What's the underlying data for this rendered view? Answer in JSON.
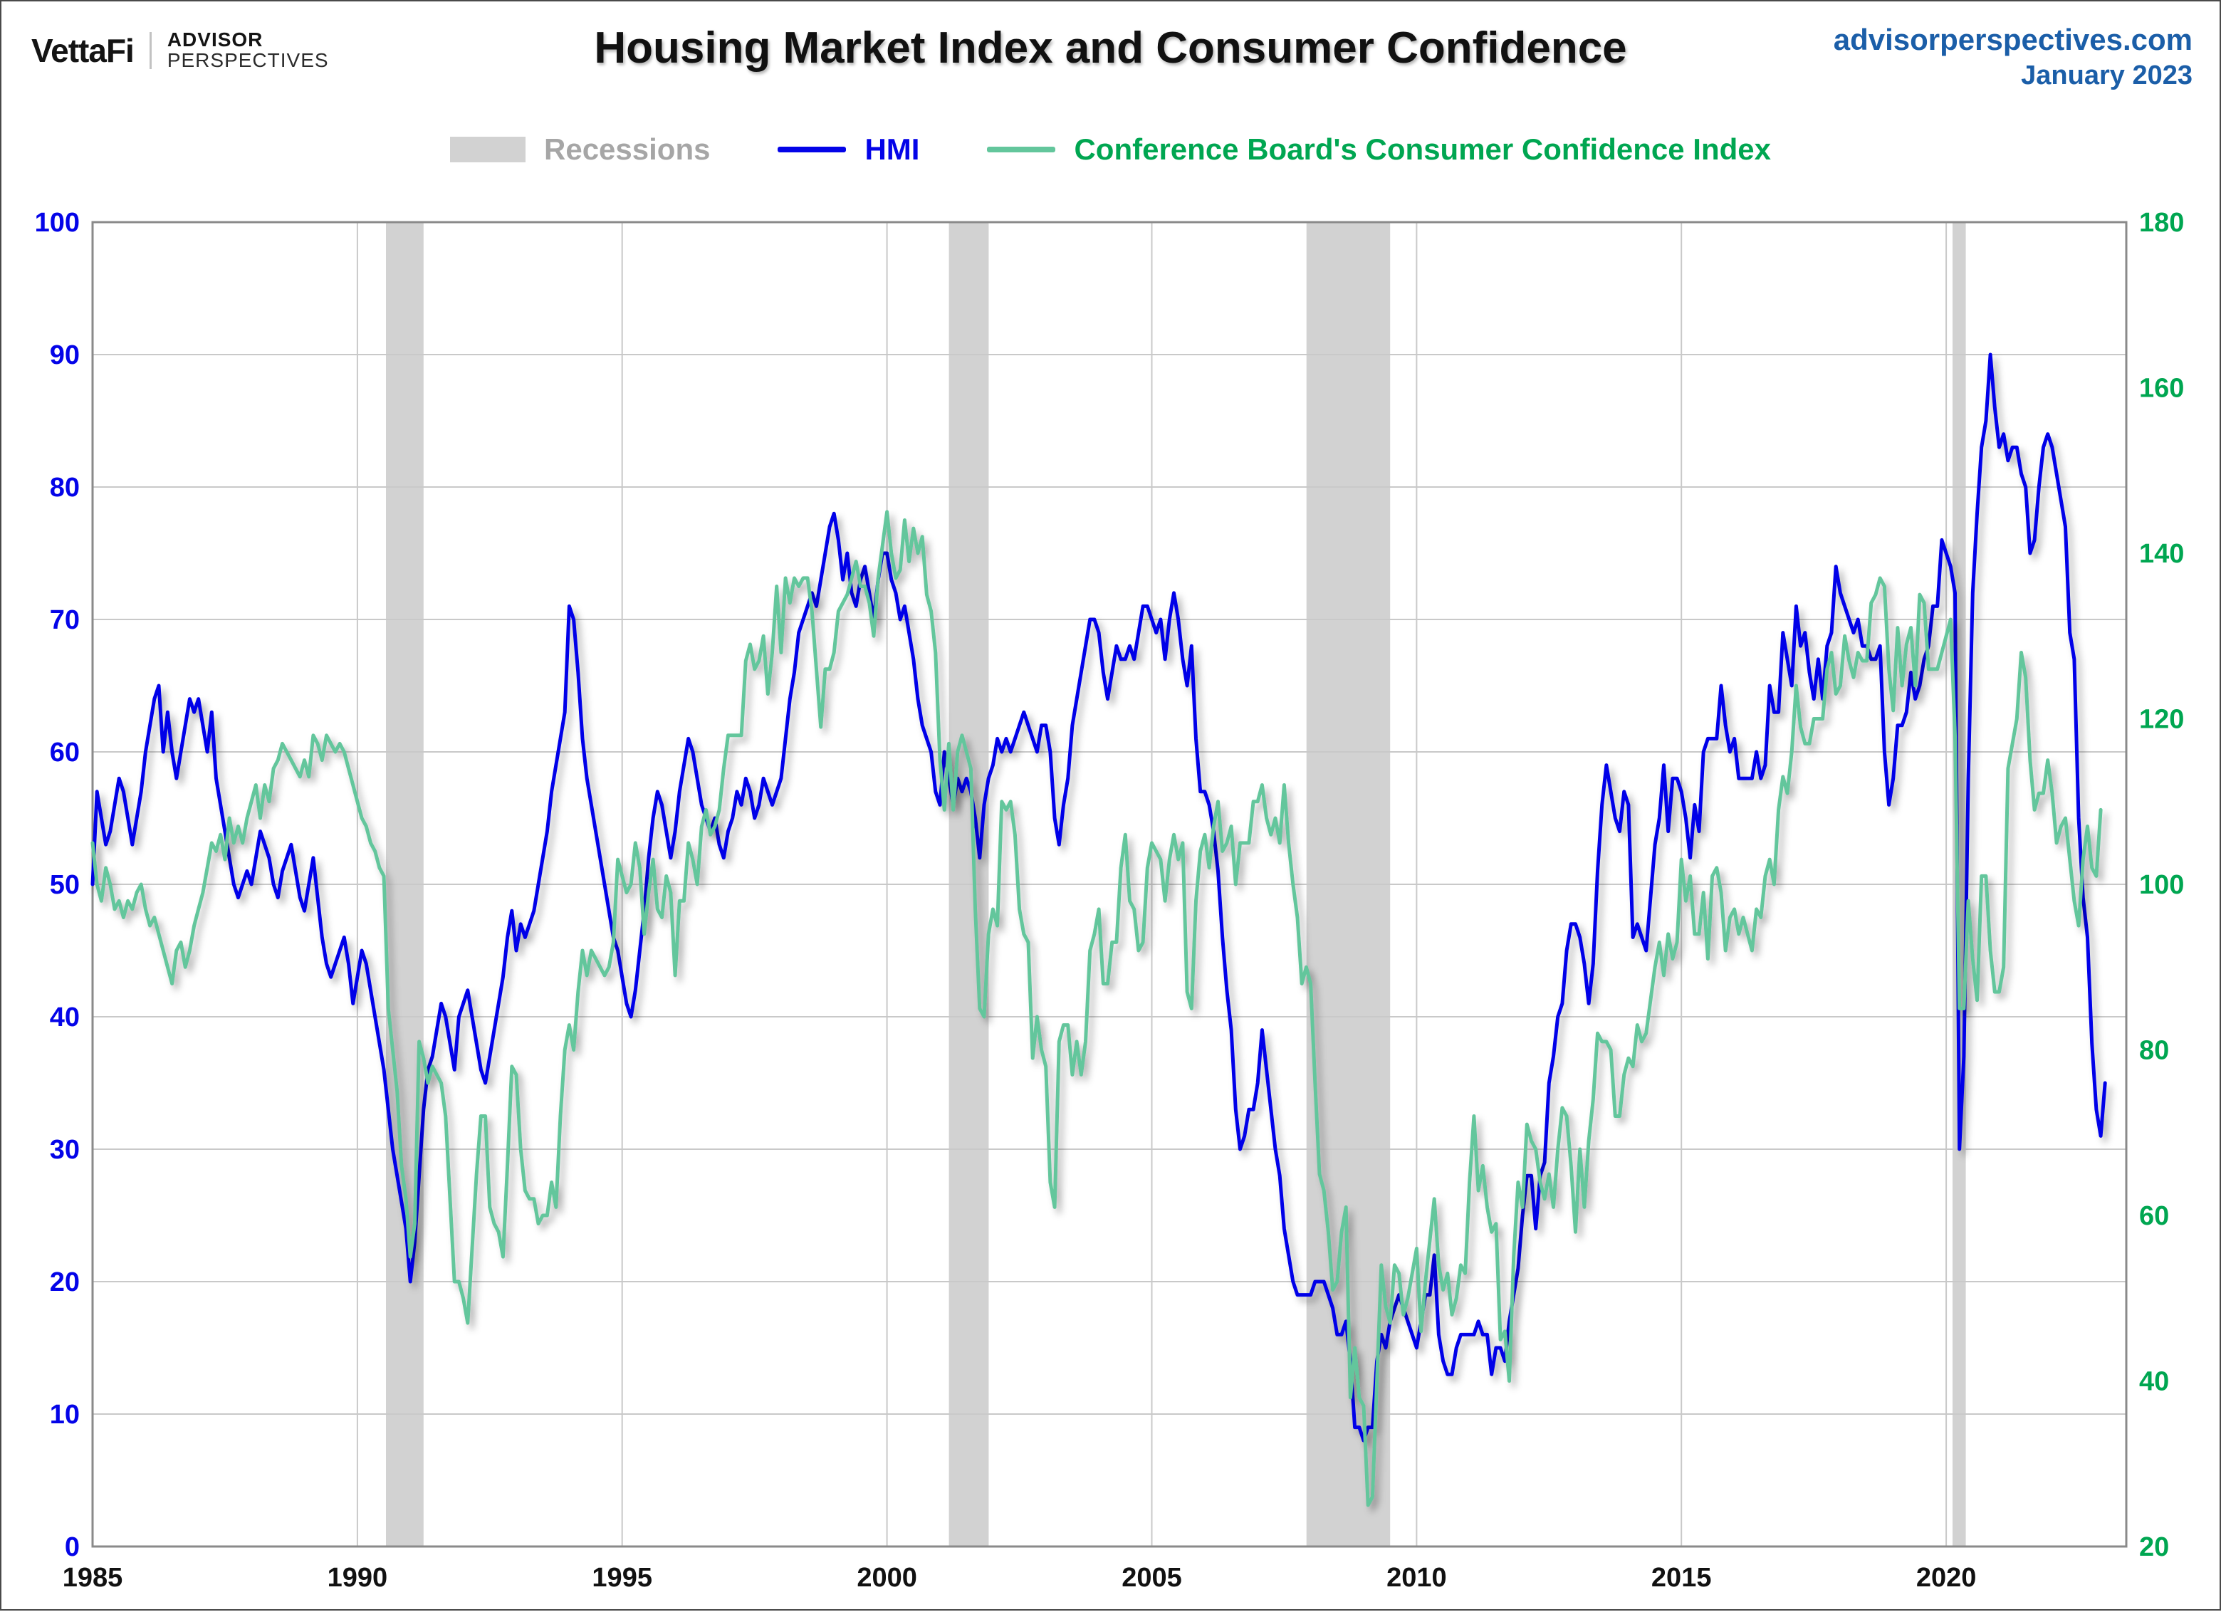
{
  "header": {
    "brand": {
      "vettafi": "VettaFi",
      "advisor": "ADVISOR",
      "perspectives": "PERSPECTIVES"
    },
    "title": "Housing Market Index and Consumer Confidence",
    "site": "advisorperspectives.com",
    "date": "January 2023",
    "site_color": "#1b5ea8"
  },
  "legend": [
    {
      "label": "Recessions",
      "swatch": "band",
      "swatch_color": "#d2d2d2",
      "text_color": "#a6a6a6"
    },
    {
      "label": "HMI",
      "swatch": "line",
      "swatch_color": "#0404e8",
      "text_color": "#0404e8"
    },
    {
      "label": "Conference Board's Consumer Confidence Index",
      "swatch": "line",
      "swatch_color": "#63c69c",
      "text_color": "#00a651"
    }
  ],
  "chart_data": {
    "type": "line",
    "title": "Housing Market Index and Consumer Confidence",
    "x_min": 1985,
    "x_max": 2023.4,
    "x_ticks": [
      1985,
      1990,
      1995,
      2000,
      2005,
      2010,
      2015,
      2020
    ],
    "left_axis": {
      "min": 0,
      "max": 100,
      "ticks": [
        0,
        10,
        20,
        30,
        40,
        50,
        60,
        70,
        80,
        90,
        100
      ],
      "color": "#0404e8"
    },
    "right_axis": {
      "min": 20,
      "max": 180,
      "ticks": [
        20,
        40,
        60,
        80,
        100,
        120,
        140,
        160,
        180
      ],
      "color": "#00a651"
    },
    "grid": true,
    "gridline_color": "#c9c9c9",
    "border_color": "#8a8a8a",
    "x_label_color": "#111111",
    "recession_color": "#d2d2d2",
    "recessions": [
      [
        1990.54,
        1991.25
      ],
      [
        2001.17,
        2001.92
      ],
      [
        2007.92,
        2009.5
      ],
      [
        2020.12,
        2020.37
      ]
    ],
    "series": [
      {
        "name": "HMI",
        "axis": "left",
        "color": "#0404e8",
        "start": "1985-01",
        "freq": "monthly",
        "values": [
          50,
          57,
          55,
          53,
          54,
          56,
          58,
          57,
          55,
          53,
          55,
          57,
          60,
          62,
          64,
          65,
          60,
          63,
          60,
          58,
          60,
          62,
          64,
          63,
          64,
          62,
          60,
          63,
          58,
          56,
          54,
          52,
          50,
          49,
          50,
          51,
          50,
          52,
          54,
          53,
          52,
          50,
          49,
          51,
          52,
          53,
          51,
          49,
          48,
          50,
          52,
          49,
          46,
          44,
          43,
          44,
          45,
          46,
          44,
          41,
          43,
          45,
          44,
          42,
          40,
          38,
          36,
          33,
          30,
          28,
          26,
          24,
          20,
          23,
          28,
          33,
          36,
          37,
          39,
          41,
          40,
          38,
          36,
          40,
          41,
          42,
          40,
          38,
          36,
          35,
          37,
          39,
          41,
          43,
          46,
          48,
          45,
          47,
          46,
          47,
          48,
          50,
          52,
          54,
          57,
          59,
          61,
          63,
          71,
          70,
          66,
          61,
          58,
          56,
          54,
          52,
          50,
          48,
          46,
          45,
          43,
          41,
          40,
          42,
          45,
          48,
          52,
          55,
          57,
          56,
          54,
          52,
          54,
          57,
          59,
          61,
          60,
          58,
          56,
          55,
          54,
          55,
          53,
          52,
          54,
          55,
          57,
          56,
          58,
          57,
          55,
          56,
          58,
          57,
          56,
          57,
          58,
          61,
          64,
          66,
          69,
          70,
          71,
          72,
          71,
          73,
          75,
          77,
          78,
          76,
          73,
          75,
          72,
          71,
          73,
          74,
          72,
          70,
          73,
          75,
          75,
          73,
          72,
          70,
          71,
          69,
          67,
          64,
          62,
          61,
          60,
          57,
          56,
          60,
          58,
          56,
          58,
          57,
          58,
          57,
          55,
          52,
          56,
          58,
          59,
          61,
          60,
          61,
          60,
          61,
          62,
          63,
          62,
          61,
          60,
          62,
          62,
          60,
          55,
          53,
          56,
          58,
          62,
          64,
          66,
          68,
          70,
          70,
          69,
          66,
          64,
          66,
          68,
          67,
          67,
          68,
          67,
          69,
          71,
          71,
          70,
          69,
          70,
          67,
          70,
          72,
          70,
          67,
          65,
          68,
          61,
          57,
          57,
          56,
          54,
          51,
          46,
          42,
          39,
          33,
          30,
          31,
          33,
          33,
          35,
          39,
          36,
          33,
          30,
          28,
          24,
          22,
          20,
          19,
          19,
          19,
          19,
          20,
          20,
          20,
          19,
          18,
          16,
          16,
          17,
          14,
          9,
          9,
          8,
          9,
          9,
          14,
          16,
          15,
          17,
          18,
          19,
          18,
          17,
          16,
          15,
          17,
          19,
          19,
          22,
          16,
          14,
          13,
          13,
          15,
          16,
          16,
          16,
          16,
          17,
          16,
          16,
          13,
          15,
          15,
          14,
          17,
          19,
          21,
          25,
          28,
          28,
          24,
          28,
          29,
          35,
          37,
          40,
          41,
          45,
          47,
          47,
          46,
          44,
          41,
          44,
          51,
          56,
          59,
          57,
          55,
          54,
          57,
          56,
          46,
          47,
          46,
          45,
          49,
          53,
          55,
          59,
          54,
          58,
          58,
          57,
          55,
          52,
          56,
          54,
          60,
          61,
          61,
          61,
          65,
          62,
          60,
          61,
          58,
          58,
          58,
          58,
          60,
          58,
          59,
          65,
          63,
          63,
          69,
          67,
          65,
          71,
          68,
          69,
          66,
          64,
          67,
          64,
          68,
          69,
          74,
          72,
          71,
          70,
          69,
          70,
          68,
          68,
          67,
          67,
          68,
          60,
          56,
          58,
          62,
          62,
          63,
          66,
          64,
          65,
          67,
          68,
          71,
          71,
          76,
          75,
          74,
          72,
          30,
          37,
          58,
          72,
          78,
          83,
          85,
          90,
          86,
          83,
          84,
          82,
          83,
          83,
          81,
          80,
          75,
          76,
          80,
          83,
          84,
          83,
          81,
          79,
          77,
          69,
          67,
          55,
          49,
          46,
          38,
          33,
          31,
          35
        ]
      },
      {
        "name": "Conference Board's Consumer Confidence Index",
        "axis": "right",
        "color": "#63c69c",
        "start": "1985-01",
        "freq": "monthly",
        "values": [
          105,
          100,
          98,
          102,
          100,
          97,
          98,
          96,
          98,
          97,
          99,
          100,
          97,
          95,
          96,
          94,
          92,
          90,
          88,
          92,
          93,
          90,
          92,
          95,
          97,
          99,
          102,
          105,
          104,
          106,
          103,
          108,
          105,
          107,
          105,
          108,
          110,
          112,
          108,
          112,
          110,
          114,
          115,
          117,
          116,
          115,
          114,
          113,
          115,
          113,
          118,
          117,
          115,
          118,
          117,
          116,
          117,
          116,
          114,
          112,
          110,
          108,
          107,
          105,
          104,
          102,
          101,
          85,
          80,
          75,
          66,
          62,
          55,
          59,
          81,
          79,
          76,
          78,
          77,
          76,
          72,
          62,
          52,
          52,
          50,
          47,
          56,
          65,
          72,
          72,
          61,
          59,
          58,
          55,
          66,
          78,
          77,
          68,
          63,
          62,
          62,
          59,
          60,
          60,
          64,
          61,
          72,
          80,
          83,
          80,
          87,
          92,
          89,
          92,
          91,
          90,
          89,
          90,
          93,
          103,
          101,
          99,
          100,
          105,
          102,
          94,
          99,
          103,
          97,
          96,
          101,
          99,
          89,
          98,
          98,
          105,
          103,
          100,
          107,
          109,
          106,
          107,
          109,
          114,
          118,
          118,
          118,
          118,
          127,
          129,
          126,
          127,
          130,
          123,
          128,
          136,
          128,
          137,
          134,
          137,
          136,
          137,
          137,
          133,
          126,
          119,
          126,
          126,
          128,
          133,
          134,
          135,
          137,
          139,
          136,
          136,
          134,
          130,
          137,
          141,
          145,
          140,
          137,
          138,
          144,
          139,
          143,
          140,
          142,
          135,
          133,
          128,
          115,
          109,
          117,
          109,
          116,
          118,
          116,
          114,
          97,
          85,
          84,
          94,
          97,
          95,
          110,
          109,
          110,
          106,
          97,
          94,
          93,
          79,
          84,
          80,
          78,
          64,
          61,
          81,
          83,
          83,
          77,
          81,
          77,
          81,
          92,
          94,
          97,
          88,
          88,
          93,
          93,
          102,
          106,
          98,
          97,
          92,
          93,
          102,
          105,
          104,
          103,
          98,
          103,
          106,
          103,
          105,
          87,
          85,
          98,
          104,
          106,
          102,
          107,
          110,
          104,
          105,
          107,
          100,
          105,
          105,
          105,
          110,
          110,
          112,
          108,
          106,
          108,
          105,
          112,
          105,
          100,
          96,
          88,
          90,
          88,
          76,
          65,
          63,
          58,
          51,
          52,
          58,
          61,
          38,
          44,
          38,
          37,
          25,
          26,
          40,
          54,
          49,
          47,
          54,
          53,
          48,
          50,
          53,
          56,
          46,
          52,
          57,
          62,
          54,
          51,
          53,
          48,
          50,
          54,
          53,
          64,
          72,
          63,
          66,
          61,
          58,
          59,
          45,
          46,
          40,
          55,
          64,
          61,
          71,
          69,
          68,
          64,
          62,
          65,
          61,
          68,
          73,
          72,
          66,
          58,
          68,
          61,
          69,
          74,
          82,
          81,
          81,
          80,
          72,
          72,
          77,
          79,
          78,
          83,
          81,
          82,
          86,
          90,
          93,
          89,
          94,
          91,
          93,
          103,
          98,
          101,
          94,
          94,
          99,
          91,
          101,
          102,
          99,
          92,
          96,
          97,
          94,
          96,
          94,
          92,
          97,
          96,
          101,
          103,
          100,
          109,
          113,
          111,
          116,
          124,
          119,
          117,
          117,
          120,
          120,
          120,
          126,
          128,
          123,
          124,
          130,
          127,
          125,
          128,
          127,
          127,
          134,
          135,
          137,
          136,
          126,
          121,
          131,
          124,
          129,
          131,
          124,
          135,
          134,
          126,
          126,
          126,
          128,
          130,
          132,
          118,
          85,
          85,
          98,
          91,
          86,
          101,
          101,
          92,
          87,
          87,
          90,
          114,
          117,
          120,
          128,
          125,
          115,
          109,
          111,
          111,
          115,
          111,
          105,
          107,
          108,
          103,
          98,
          95,
          103,
          107,
          102,
          101,
          109
        ]
      }
    ]
  }
}
